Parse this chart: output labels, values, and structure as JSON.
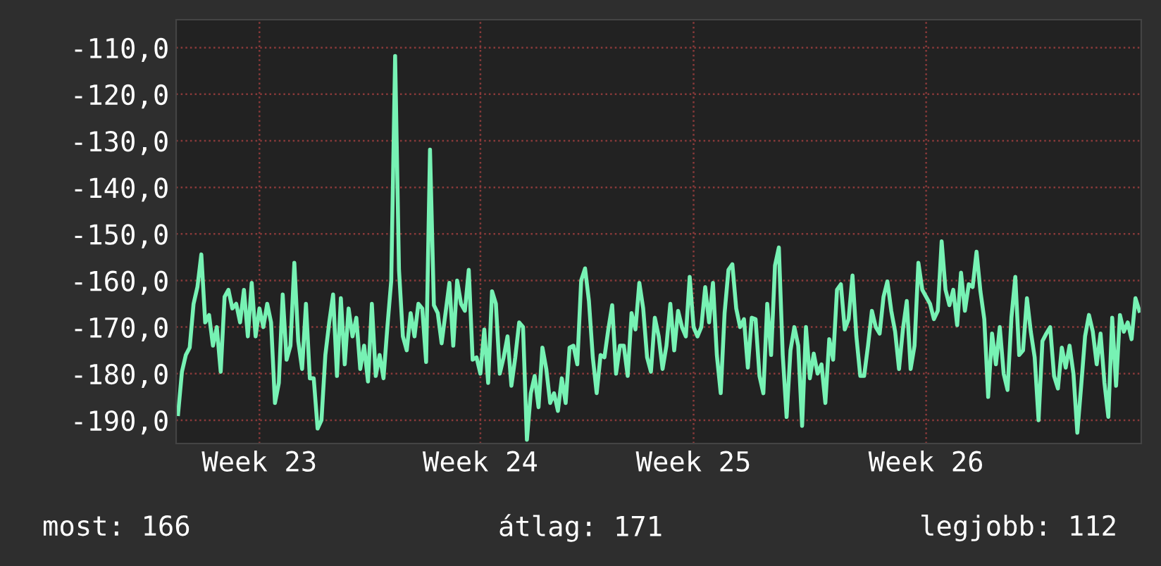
{
  "chart_data": {
    "type": "line",
    "categories": [
      null,
      null,
      null,
      null,
      null,
      null,
      null,
      null,
      null,
      null,
      null,
      null,
      null,
      null,
      null,
      null,
      null,
      null,
      null,
      null,
      null,
      "Week 23",
      null,
      null,
      null,
      null,
      null,
      null,
      null,
      null,
      null,
      null,
      null,
      null,
      null,
      null,
      null,
      null,
      null,
      null,
      null,
      null,
      null,
      null,
      null,
      null,
      null,
      null,
      null,
      null,
      null,
      null,
      null,
      null,
      null,
      null,
      null,
      null,
      null,
      null,
      null,
      null,
      null,
      null,
      null,
      null,
      null,
      null,
      null,
      null,
      null,
      null,
      null,
      null,
      null,
      null,
      null,
      null,
      "Week 24",
      null,
      null,
      null,
      null,
      null,
      null,
      null,
      null,
      null,
      null,
      null,
      null,
      null,
      null,
      null,
      null,
      null,
      null,
      null,
      null,
      null,
      null,
      null,
      null,
      null,
      null,
      null,
      null,
      null,
      null,
      null,
      null,
      null,
      null,
      null,
      null,
      null,
      null,
      null,
      null,
      null,
      null,
      null,
      null,
      null,
      null,
      null,
      null,
      null,
      null,
      null,
      null,
      null,
      null,
      "Week 25",
      null,
      null,
      null,
      null,
      null,
      null,
      null,
      null,
      null,
      null,
      null,
      null,
      null,
      null,
      null,
      null,
      null,
      null,
      null,
      null,
      null,
      null,
      null,
      null,
      null,
      null,
      null,
      null,
      null,
      null,
      null,
      null,
      null,
      null,
      null,
      null,
      null,
      null,
      null,
      null,
      null,
      null,
      null,
      null,
      null,
      null,
      null,
      null,
      null,
      null,
      null,
      null,
      null,
      null,
      null,
      null,
      null,
      null,
      null,
      "Week 26",
      null,
      null,
      null,
      null,
      null,
      null,
      null,
      null,
      null,
      null,
      null,
      null,
      null,
      null,
      null,
      null,
      null,
      null,
      null,
      null,
      null,
      null,
      null,
      null,
      null,
      null,
      null,
      null,
      null,
      null,
      null,
      null,
      null,
      null,
      null,
      null,
      null,
      null,
      null,
      null,
      null,
      null,
      null,
      null,
      null,
      null,
      null,
      null,
      null,
      null,
      null,
      null,
      null,
      null,
      null
    ],
    "series": [
      {
        "color": "#77f2b4",
        "values": [
          -188.7,
          -179.6,
          -176,
          -174.4,
          -165,
          -161.4,
          -154.4,
          -169,
          -167.4,
          -174,
          -170,
          -179.6,
          -163.5,
          -162,
          -166,
          -165,
          -169,
          -162,
          -172,
          -160.5,
          -172,
          -166,
          -170,
          -165,
          -169,
          -186.3,
          -182,
          -163,
          -177,
          -174,
          -156.2,
          -173,
          -179,
          -165,
          -181,
          -181,
          -191.8,
          -190,
          -176,
          -169,
          -163,
          -180.5,
          -163.8,
          -178,
          -166,
          -172,
          -168,
          -179,
          -174,
          -181.7,
          -165,
          -180.5,
          -176,
          -181,
          -170,
          -160,
          -111.8,
          -157.7,
          -172,
          -175,
          -167,
          -172,
          -165,
          -166,
          -177.5,
          -131.9,
          -165.3,
          -167,
          -173.5,
          -167,
          -160.5,
          -174,
          -160,
          -165,
          -166.5,
          -157.7,
          -177,
          -176.5,
          -180,
          -170.5,
          -182,
          -162.3,
          -165,
          -180,
          -176.5,
          -172,
          -182.6,
          -176.5,
          -169,
          -170,
          -194.2,
          -184.2,
          -180.5,
          -187.2,
          -174.4,
          -179,
          -186.3,
          -184.2,
          -188,
          -181,
          -186.3,
          -174.4,
          -174,
          -178,
          -160,
          -157.4,
          -164.4,
          -176.5,
          -184.2,
          -176,
          -176.5,
          -170.5,
          -165.3,
          -180,
          -174,
          -174,
          -180.5,
          -167,
          -170.5,
          -160.5,
          -166,
          -176.5,
          -179.6,
          -168,
          -172,
          -179,
          -174,
          -165,
          -175,
          -166.5,
          -170,
          -172,
          -159.2,
          -170,
          -172,
          -170,
          -161.4,
          -169,
          -160.5,
          -176,
          -184.2,
          -167,
          -157.7,
          -156.5,
          -166,
          -170,
          -168.3,
          -178.7,
          -168,
          -168.3,
          -180.5,
          -184.2,
          -165,
          -176,
          -156.8,
          -152.9,
          -176,
          -189.3,
          -175,
          -170,
          -174,
          -191.2,
          -170,
          -181,
          -175.7,
          -180,
          -178,
          -186.3,
          -172.6,
          -177,
          -162,
          -160.8,
          -170.5,
          -168.3,
          -158.9,
          -172,
          -180.5,
          -180.5,
          -174,
          -166.5,
          -170,
          -171.4,
          -163.5,
          -160.2,
          -166.5,
          -171,
          -179,
          -170.5,
          -164.4,
          -179,
          -174,
          -156.2,
          -162,
          -163.5,
          -165,
          -168.3,
          -166.5,
          -151.6,
          -162,
          -165.3,
          -162,
          -169.6,
          -158.3,
          -166.5,
          -160.8,
          -161.4,
          -153.8,
          -162.3,
          -168.3,
          -185,
          -171.4,
          -178,
          -170,
          -180,
          -183.5,
          -168,
          -159.2,
          -176,
          -175,
          -163.8,
          -171,
          -176.5,
          -190,
          -173,
          -171.4,
          -170,
          -180.5,
          -183.2,
          -174.4,
          -178.7,
          -174,
          -180,
          -192.7,
          -182.6,
          -172,
          -167.4,
          -171,
          -178,
          -171.4,
          -182,
          -189.3,
          -168,
          -182.6,
          -167.4,
          -171,
          -169,
          -172.6,
          -163.8,
          -166.5
        ]
      }
    ],
    "ylim": [
      -195,
      -104
    ],
    "yticks": [
      {
        "value": -190,
        "label": "-190,0"
      },
      {
        "value": -180,
        "label": "-180,0"
      },
      {
        "value": -170,
        "label": "-170,0"
      },
      {
        "value": -160,
        "label": "-160,0"
      },
      {
        "value": -150,
        "label": "-150,0"
      },
      {
        "value": -140,
        "label": "-140,0"
      },
      {
        "value": -130,
        "label": "-130,0"
      },
      {
        "value": -120,
        "label": "-120,0"
      },
      {
        "value": -110,
        "label": "-110,0"
      }
    ],
    "grid": true,
    "annotations": [
      "most: 166",
      "átlag: 171",
      "legjobb: 112"
    ]
  }
}
